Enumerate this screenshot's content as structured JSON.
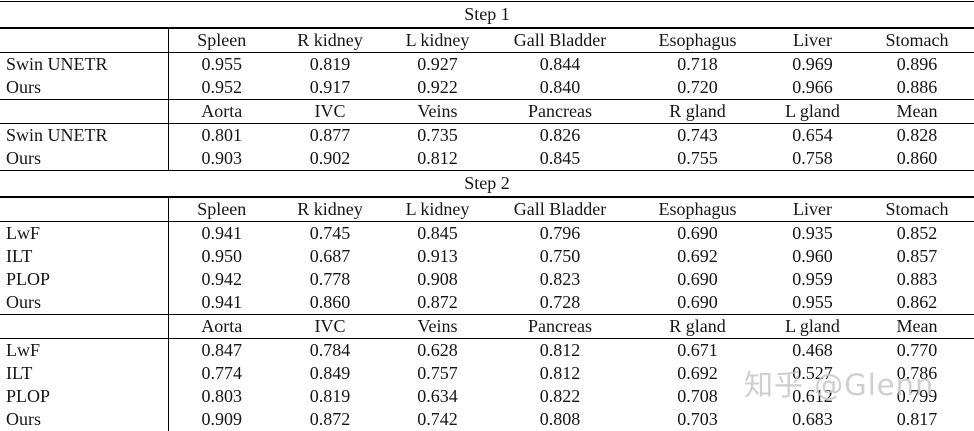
{
  "page": {
    "background": "#ffffff",
    "text_color": "#151515",
    "rule_color": "#000000"
  },
  "watermark": {
    "text": "知乎 @Glenn",
    "color": "#c7c7c7"
  },
  "table": {
    "sections": [
      {
        "title": "Step 1",
        "blocks": [
          {
            "columns": [
              "Spleen",
              "R kidney",
              "L kidney",
              "Gall Bladder",
              "Esophagus",
              "Liver",
              "Stomach"
            ],
            "rows": [
              {
                "label": "Swin UNETR",
                "values": [
                  "0.955",
                  "0.819",
                  "0.927",
                  "0.844",
                  "0.718",
                  "0.969",
                  "0.896"
                ],
                "bold": []
              },
              {
                "label": "Ours",
                "values": [
                  "0.952",
                  "0.917",
                  "0.922",
                  "0.840",
                  "0.720",
                  "0.966",
                  "0.886"
                ],
                "bold": []
              }
            ]
          },
          {
            "columns": [
              "Aorta",
              "IVC",
              "Veins",
              "Pancreas",
              "R gland",
              "L gland",
              "Mean"
            ],
            "rows": [
              {
                "label": "Swin UNETR",
                "values": [
                  "0.801",
                  "0.877",
                  "0.735",
                  "0.826",
                  "0.743",
                  "0.654",
                  "0.828"
                ],
                "bold": []
              },
              {
                "label": "Ours",
                "values": [
                  "0.903",
                  "0.902",
                  "0.812",
                  "0.845",
                  "0.755",
                  "0.758",
                  "0.860"
                ],
                "bold": [
                  6
                ]
              }
            ]
          }
        ]
      },
      {
        "title": "Step 2",
        "blocks": [
          {
            "columns": [
              "Spleen",
              "R kidney",
              "L kidney",
              "Gall Bladder",
              "Esophagus",
              "Liver",
              "Stomach"
            ],
            "rows": [
              {
                "label": "LwF",
                "values": [
                  "0.941",
                  "0.745",
                  "0.845",
                  "0.796",
                  "0.690",
                  "0.935",
                  "0.852"
                ],
                "bold": []
              },
              {
                "label": "ILT",
                "values": [
                  "0.950",
                  "0.687",
                  "0.913",
                  "0.750",
                  "0.692",
                  "0.960",
                  "0.857"
                ],
                "bold": []
              },
              {
                "label": "PLOP",
                "values": [
                  "0.942",
                  "0.778",
                  "0.908",
                  "0.823",
                  "0.690",
                  "0.959",
                  "0.883"
                ],
                "bold": []
              },
              {
                "label": "Ours",
                "values": [
                  "0.941",
                  "0.860",
                  "0.872",
                  "0.728",
                  "0.690",
                  "0.955",
                  "0.862"
                ],
                "bold": []
              }
            ]
          },
          {
            "columns": [
              "Aorta",
              "IVC",
              "Veins",
              "Pancreas",
              "R gland",
              "L gland",
              "Mean"
            ],
            "rows": [
              {
                "label": "LwF",
                "values": [
                  "0.847",
                  "0.784",
                  "0.628",
                  "0.812",
                  "0.671",
                  "0.468",
                  "0.770"
                ],
                "bold": []
              },
              {
                "label": "ILT",
                "values": [
                  "0.774",
                  "0.849",
                  "0.757",
                  "0.812",
                  "0.692",
                  "0.527",
                  "0.786"
                ],
                "bold": []
              },
              {
                "label": "PLOP",
                "values": [
                  "0.803",
                  "0.819",
                  "0.634",
                  "0.822",
                  "0.708",
                  "0.612",
                  "0.799"
                ],
                "bold": []
              },
              {
                "label": "Ours",
                "values": [
                  "0.909",
                  "0.872",
                  "0.742",
                  "0.808",
                  "0.703",
                  "0.683",
                  "0.817"
                ],
                "bold": [
                  6
                ]
              }
            ]
          }
        ]
      }
    ]
  }
}
